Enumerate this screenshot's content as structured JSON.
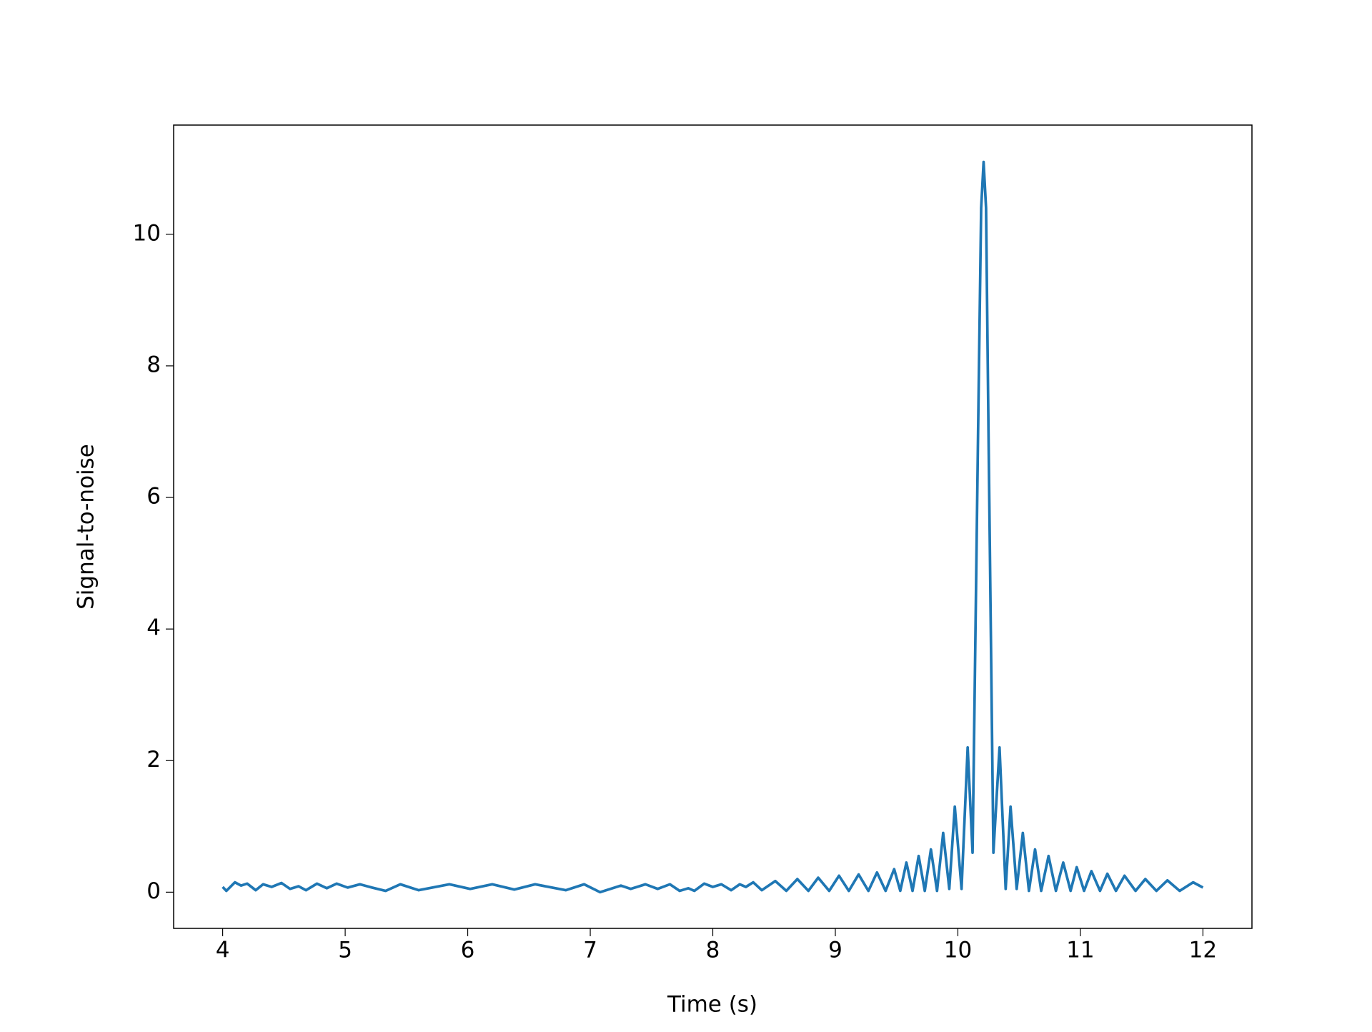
{
  "chart_data": {
    "type": "line",
    "xlabel": "Time (s)",
    "ylabel": "Signal-to-noise",
    "xlim": [
      3.6,
      12.4
    ],
    "ylim": [
      -0.55,
      11.66
    ],
    "xticks": [
      4,
      5,
      6,
      7,
      8,
      9,
      10,
      11,
      12
    ],
    "yticks": [
      0,
      2,
      4,
      6,
      8,
      10
    ],
    "grid": false,
    "series": [
      {
        "color": "#1f77b4",
        "x": [
          4.0,
          4.03,
          4.1,
          4.15,
          4.2,
          4.27,
          4.33,
          4.4,
          4.48,
          4.55,
          4.62,
          4.68,
          4.77,
          4.85,
          4.93,
          5.02,
          5.12,
          5.22,
          5.33,
          5.45,
          5.6,
          5.85,
          6.02,
          6.2,
          6.38,
          6.55,
          6.8,
          6.95,
          7.08,
          7.25,
          7.33,
          7.45,
          7.55,
          7.65,
          7.73,
          7.8,
          7.85,
          7.93,
          8.0,
          8.07,
          8.15,
          8.22,
          8.27,
          8.33,
          8.4,
          8.51,
          8.6,
          8.69,
          8.78,
          8.86,
          8.95,
          9.03,
          9.11,
          9.19,
          9.27,
          9.34,
          9.41,
          9.48,
          9.53,
          9.58,
          9.63,
          9.68,
          9.73,
          9.78,
          9.83,
          9.88,
          9.93,
          9.975,
          10.03,
          10.08,
          10.12,
          10.165,
          10.19,
          10.21,
          10.23,
          10.25,
          10.29,
          10.34,
          10.39,
          10.43,
          10.48,
          10.53,
          10.58,
          10.63,
          10.68,
          10.74,
          10.8,
          10.86,
          10.92,
          10.97,
          11.03,
          11.09,
          11.16,
          11.22,
          11.29,
          11.36,
          11.45,
          11.53,
          11.62,
          11.71,
          11.81,
          11.92,
          12.0
        ],
        "values": [
          0.08,
          0.02,
          0.15,
          0.1,
          0.13,
          0.03,
          0.12,
          0.08,
          0.14,
          0.05,
          0.09,
          0.03,
          0.13,
          0.06,
          0.13,
          0.07,
          0.12,
          0.07,
          0.02,
          0.12,
          0.03,
          0.12,
          0.05,
          0.12,
          0.04,
          0.12,
          0.03,
          0.12,
          0.0,
          0.1,
          0.05,
          0.12,
          0.05,
          0.12,
          0.02,
          0.06,
          0.02,
          0.13,
          0.08,
          0.12,
          0.03,
          0.12,
          0.08,
          0.15,
          0.03,
          0.17,
          0.02,
          0.2,
          0.02,
          0.22,
          0.02,
          0.25,
          0.02,
          0.27,
          0.02,
          0.3,
          0.02,
          0.35,
          0.02,
          0.45,
          0.02,
          0.55,
          0.02,
          0.65,
          0.02,
          0.9,
          0.05,
          1.3,
          0.05,
          2.2,
          0.6,
          7.0,
          10.4,
          11.1,
          10.4,
          7.0,
          0.6,
          2.2,
          0.05,
          1.3,
          0.05,
          0.9,
          0.02,
          0.65,
          0.02,
          0.55,
          0.02,
          0.45,
          0.02,
          0.38,
          0.02,
          0.32,
          0.02,
          0.28,
          0.02,
          0.25,
          0.02,
          0.2,
          0.02,
          0.18,
          0.02,
          0.15,
          0.07
        ]
      }
    ]
  }
}
